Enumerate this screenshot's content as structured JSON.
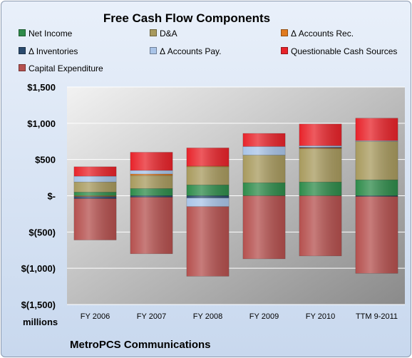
{
  "chart_data": {
    "type": "bar",
    "stacked": true,
    "title": "Free Cash Flow Components",
    "units_label": "millions",
    "footer": "MetroPCS Communications",
    "categories": [
      "FY 2006",
      "FY 2007",
      "FY 2008",
      "FY 2009",
      "FY 2010",
      "TTM 9-2011"
    ],
    "ylim": [
      -1500,
      1500
    ],
    "yticks": [
      1500,
      1000,
      500,
      0,
      -500,
      -1000,
      -1500
    ],
    "ytick_labels": [
      "$1,500",
      "$1,000",
      "$500",
      "$-",
      "$(500)",
      "$(1,000)",
      "$(1,500)"
    ],
    "grid": true,
    "legend_position": "top",
    "series": [
      {
        "name": "Net Income",
        "color": "#2e8b4a",
        "values": [
          50,
          100,
          150,
          180,
          190,
          220
        ]
      },
      {
        "name": "D&A",
        "color": "#a89a5e",
        "values": [
          140,
          180,
          250,
          380,
          460,
          530
        ]
      },
      {
        "name": "Δ Accounts Rec.",
        "color": "#e07a1f",
        "values": [
          -10,
          20,
          10,
          0,
          10,
          0
        ]
      },
      {
        "name": "Δ Inventories",
        "color": "#2a4a6e",
        "values": [
          -30,
          -20,
          -30,
          0,
          10,
          -10
        ]
      },
      {
        "name": "Δ Accounts Pay.",
        "color": "#a9c4e8",
        "values": [
          80,
          50,
          -120,
          120,
          20,
          10
        ]
      },
      {
        "name": "Questionable Cash Sources",
        "color": "#e8232a",
        "values": [
          130,
          250,
          250,
          180,
          300,
          310
        ]
      },
      {
        "name": "Capital Expenditure",
        "color": "#b5504e",
        "values": [
          -570,
          -780,
          -960,
          -870,
          -830,
          -1060
        ]
      }
    ]
  }
}
